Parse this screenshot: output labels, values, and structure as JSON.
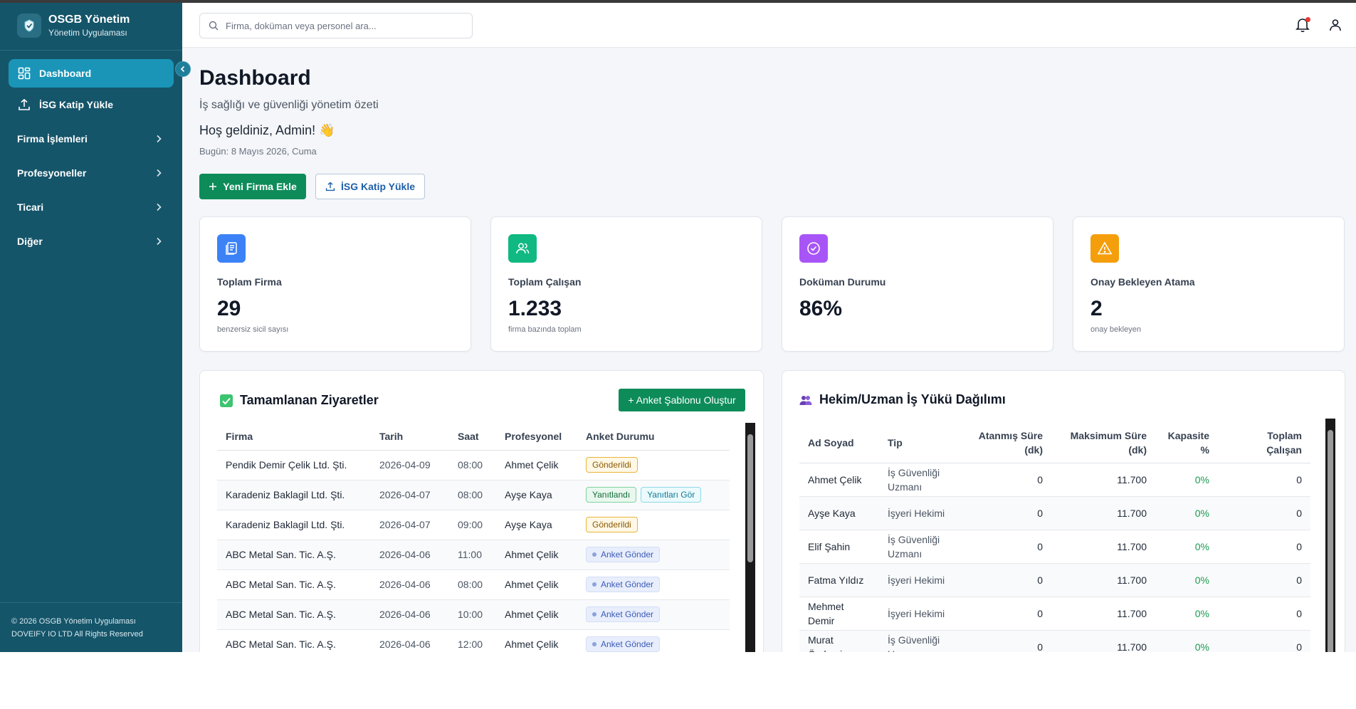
{
  "sidebar": {
    "brand_title": "OSGB Yönetim",
    "brand_sub": "Yönetim Uygulaması",
    "items": [
      {
        "label": "Dashboard",
        "icon": "dashboard-grid-icon",
        "active": true
      },
      {
        "label": "İSG Katip Yükle",
        "icon": "upload-icon"
      }
    ],
    "groups": [
      {
        "label": "Firma İşlemleri"
      },
      {
        "label": "Profesyoneller"
      },
      {
        "label": "Ticari"
      },
      {
        "label": "Diğer"
      }
    ],
    "footer_line1": "© 2026 OSGB Yönetim Uygulaması",
    "footer_line2": "DOVEIFY IO LTD All Rights Reserved"
  },
  "topbar": {
    "search_placeholder": "Firma, doküman veya personel ara..."
  },
  "header": {
    "title": "Dashboard",
    "subtitle": "İş sağlığı ve güvenliği yönetim özeti",
    "welcome": "Hoş geldiniz, Admin! 👋",
    "today": "Bugün: 8 Mayıs 2026, Cuma"
  },
  "actions": {
    "new_firm": "Yeni Firma Ekle",
    "upload": "İSG Katip Yükle"
  },
  "stats": [
    {
      "label": "Toplam Firma",
      "value": "29",
      "note": "benzersiz sicil sayısı",
      "color": "#3b82f6"
    },
    {
      "label": "Toplam Çalışan",
      "value": "1.233",
      "note": "firma bazında toplam",
      "color": "#10b981"
    },
    {
      "label": "Doküman Durumu",
      "value": "86%",
      "note": "",
      "color": "#a855f7"
    },
    {
      "label": "Onay Bekleyen Atama",
      "value": "2",
      "note": "onay bekleyen",
      "color": "#f59e0b"
    }
  ],
  "visits": {
    "title": "Tamamlanan Ziyaretler",
    "create_button": "+ Anket Şablonu Oluştur",
    "columns": [
      "Firma",
      "Tarih",
      "Saat",
      "Profesyonel",
      "Anket Durumu"
    ],
    "rows": [
      {
        "firm": "Pendik Demir Çelik Ltd. Şti.",
        "date": "2026-04-09",
        "time": "08:00",
        "pro": "Ahmet Çelik",
        "badges": [
          {
            "text": "Gönderildi",
            "kind": "sent"
          }
        ]
      },
      {
        "firm": "Karadeniz Baklagil Ltd. Şti.",
        "date": "2026-04-07",
        "time": "08:00",
        "pro": "Ayşe Kaya",
        "badges": [
          {
            "text": "Yanıtlandı",
            "kind": "ans"
          },
          {
            "text": "Yanıtları Gör",
            "kind": "view"
          }
        ]
      },
      {
        "firm": "Karadeniz Baklagil Ltd. Şti.",
        "date": "2026-04-07",
        "time": "09:00",
        "pro": "Ayşe Kaya",
        "badges": [
          {
            "text": "Gönderildi",
            "kind": "sent"
          }
        ]
      },
      {
        "firm": "ABC Metal San. Tic. A.Ş.",
        "date": "2026-04-06",
        "time": "11:00",
        "pro": "Ahmet Çelik",
        "badges": [
          {
            "text": "Anket Gönder",
            "kind": "send"
          }
        ]
      },
      {
        "firm": "ABC Metal San. Tic. A.Ş.",
        "date": "2026-04-06",
        "time": "08:00",
        "pro": "Ahmet Çelik",
        "badges": [
          {
            "text": "Anket Gönder",
            "kind": "send"
          }
        ]
      },
      {
        "firm": "ABC Metal San. Tic. A.Ş.",
        "date": "2026-04-06",
        "time": "10:00",
        "pro": "Ahmet Çelik",
        "badges": [
          {
            "text": "Anket Gönder",
            "kind": "send"
          }
        ]
      },
      {
        "firm": "ABC Metal San. Tic. A.Ş.",
        "date": "2026-04-06",
        "time": "12:00",
        "pro": "Ahmet Çelik",
        "badges": [
          {
            "text": "Anket Gönder",
            "kind": "send"
          }
        ]
      }
    ]
  },
  "workload": {
    "title": "Hekim/Uzman İş Yükü Dağılımı",
    "columns": [
      {
        "l1": "Ad Soyad",
        "l2": ""
      },
      {
        "l1": "Tip",
        "l2": ""
      },
      {
        "l1": "Atanmış Süre",
        "l2": "(dk)"
      },
      {
        "l1": "Maksimum Süre",
        "l2": "(dk)"
      },
      {
        "l1": "Kapasite",
        "l2": "%"
      },
      {
        "l1": "Toplam",
        "l2": "Çalışan"
      }
    ],
    "rows": [
      {
        "name1": "Ahmet Çelik",
        "name2": "",
        "type1": "İş Güvenliği",
        "type2": "Uzmanı",
        "assigned": "0",
        "max": "11.700",
        "cap": "0%",
        "total": "0"
      },
      {
        "name1": "Ayşe Kaya",
        "name2": "",
        "type1": "İşyeri Hekimi",
        "type2": "",
        "assigned": "0",
        "max": "11.700",
        "cap": "0%",
        "total": "0"
      },
      {
        "name1": "Elif Şahin",
        "name2": "",
        "type1": "İş Güvenliği",
        "type2": "Uzmanı",
        "assigned": "0",
        "max": "11.700",
        "cap": "0%",
        "total": "0"
      },
      {
        "name1": "Fatma Yıldız",
        "name2": "",
        "type1": "İşyeri Hekimi",
        "type2": "",
        "assigned": "0",
        "max": "11.700",
        "cap": "0%",
        "total": "0"
      },
      {
        "name1": "Mehmet",
        "name2": "Demir",
        "type1": "İşyeri Hekimi",
        "type2": "",
        "assigned": "0",
        "max": "11.700",
        "cap": "0%",
        "total": "0"
      },
      {
        "name1": "Murat Özdemir",
        "name2": "",
        "type1": "İş Güvenliği",
        "type2": "Uzmanı",
        "assigned": "0",
        "max": "11.700",
        "cap": "0%",
        "total": "0"
      }
    ]
  }
}
